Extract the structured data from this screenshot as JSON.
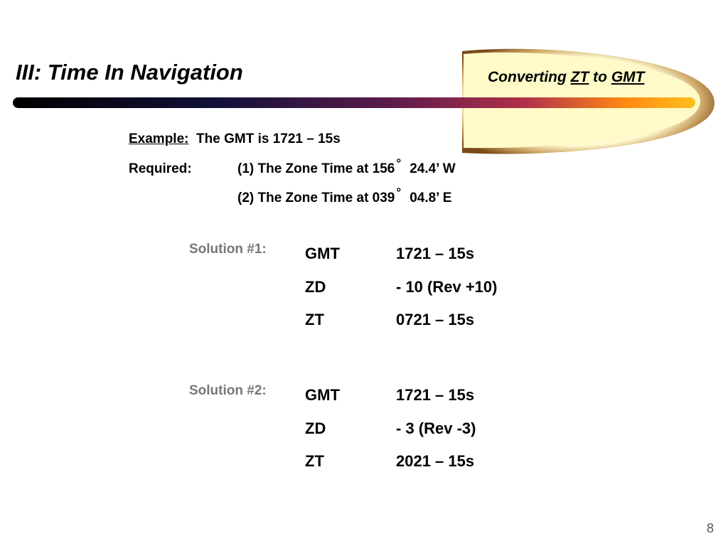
{
  "slide": {
    "title": "III: Time In Navigation",
    "subtitle": {
      "part1": "Converting ",
      "part2": "ZT",
      "part3": " to ",
      "part4": "GMT"
    },
    "page_number": "8"
  },
  "example": {
    "label": "Example:",
    "text": "The GMT is 1721 – 15s"
  },
  "required": {
    "label": "Required:",
    "items": [
      {
        "lead": "(1) The Zone Time at 156",
        "degree": "°",
        "tail": "24.4’ W"
      },
      {
        "lead": "(2) The Zone Time at 039",
        "degree": "°",
        "tail": "04.8’ E"
      }
    ]
  },
  "solutions": [
    {
      "label": "Solution #1:",
      "rows": [
        {
          "key": "GMT",
          "value": "1721 – 15s"
        },
        {
          "key": "ZD",
          "value": "- 10 (Rev +10)"
        },
        {
          "key": "ZT",
          "value": "0721 – 15s"
        }
      ]
    },
    {
      "label": "Solution #2:",
      "rows": [
        {
          "key": "GMT",
          "value": "1721 – 15s"
        },
        {
          "key": "ZD",
          "value": "- 3 (Rev -3)"
        },
        {
          "key": "ZT",
          "value": "2021 – 15s"
        }
      ]
    }
  ],
  "colors": {
    "decor_bar_start": "#000000",
    "decor_bar_mid": "#8a1f4a",
    "decor_bar_end": "#ffb400",
    "decor_ellipse_fill": "#fffac8",
    "decor_ellipse_ring": "#8b5a1e"
  }
}
